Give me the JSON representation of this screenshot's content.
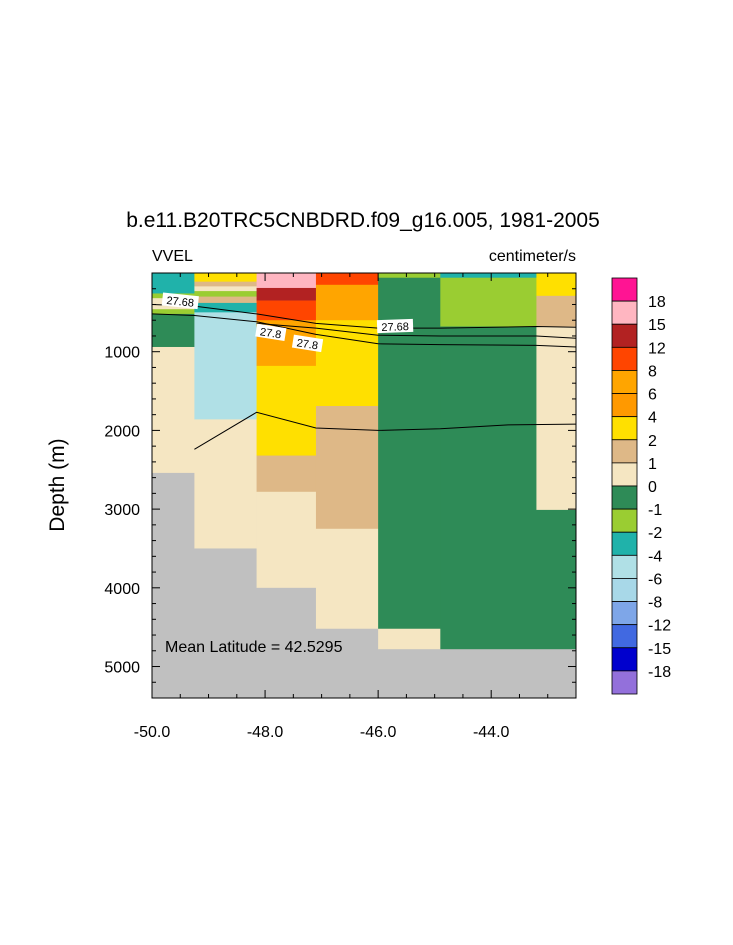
{
  "chart_data": {
    "type": "heatmap",
    "title": "b.e11.B20TRC5CNBDRD.f09_g16.005, 1981-2005",
    "variable_label": "VVEL",
    "units_label": "centimeter/s",
    "ylabel": "Depth (m)",
    "xlabel": "",
    "xlim": [
      -50.0,
      -42.5
    ],
    "ylim": [
      5400,
      0
    ],
    "y_reversed": true,
    "x_ticks": [
      -50.0,
      -48.0,
      -46.0,
      -44.0
    ],
    "x_tick_labels": [
      "-50.0",
      "-48.0",
      "-46.0",
      "-44.0"
    ],
    "y_ticks": [
      1000,
      2000,
      3000,
      4000,
      5000
    ],
    "y_tick_labels": [
      "1000",
      "2000",
      "3000",
      "4000",
      "5000"
    ],
    "annotation": "Mean Latitude = 42.5295",
    "colorbar": {
      "labels": [
        "18",
        "15",
        "12",
        "8",
        "6",
        "4",
        "2",
        "1",
        "0",
        "-1",
        "-2",
        "-4",
        "-6",
        "-8",
        "-12",
        "-15",
        "-18"
      ],
      "colors": [
        "#ff1493",
        "#ffb6c1",
        "#b22222",
        "#ff4500",
        "#ffa500",
        "#ff9900",
        "#ffe000",
        "#deb887",
        "#f5e6c2",
        "#2e8b57",
        "#9acd32",
        "#20b2aa",
        "#b0e0e6",
        "#a8d8e8",
        "#7ea6e8",
        "#4169e1",
        "#0000cd",
        "#9370db"
      ]
    },
    "missing_color": "#c0c0c0",
    "columns": [
      {
        "x0": -50.0,
        "x1": -49.25,
        "cells": [
          {
            "d0": 0,
            "d1": 260,
            "color": "#20b2aa"
          },
          {
            "d0": 260,
            "d1": 320,
            "color": "#9acd32"
          },
          {
            "d0": 320,
            "d1": 460,
            "color": "#f5e6c2"
          },
          {
            "d0": 460,
            "d1": 520,
            "color": "#9acd32"
          },
          {
            "d0": 520,
            "d1": 940,
            "color": "#2e8b57"
          },
          {
            "d0": 940,
            "d1": 2540,
            "color": "#f5e6c2"
          },
          {
            "d0": 2540,
            "d1": 5400,
            "color": "#c0c0c0"
          }
        ]
      },
      {
        "x0": -49.25,
        "x1": -48.15,
        "cells": [
          {
            "d0": 0,
            "d1": 110,
            "color": "#ffe000"
          },
          {
            "d0": 110,
            "d1": 170,
            "color": "#deb887"
          },
          {
            "d0": 170,
            "d1": 230,
            "color": "#f5e6c2"
          },
          {
            "d0": 230,
            "d1": 300,
            "color": "#9acd32"
          },
          {
            "d0": 300,
            "d1": 380,
            "color": "#deb887"
          },
          {
            "d0": 380,
            "d1": 500,
            "color": "#20b2aa"
          },
          {
            "d0": 500,
            "d1": 1860,
            "color": "#b0e0e6"
          },
          {
            "d0": 1860,
            "d1": 3500,
            "color": "#f5e6c2"
          },
          {
            "d0": 3500,
            "d1": 5400,
            "color": "#c0c0c0"
          }
        ]
      },
      {
        "x0": -48.15,
        "x1": -47.1,
        "cells": [
          {
            "d0": 0,
            "d1": 190,
            "color": "#ffb6c1"
          },
          {
            "d0": 190,
            "d1": 350,
            "color": "#b22222"
          },
          {
            "d0": 350,
            "d1": 600,
            "color": "#ff4500"
          },
          {
            "d0": 600,
            "d1": 1180,
            "color": "#ffa500"
          },
          {
            "d0": 1180,
            "d1": 2320,
            "color": "#ffe000"
          },
          {
            "d0": 2320,
            "d1": 2780,
            "color": "#deb887"
          },
          {
            "d0": 2780,
            "d1": 4000,
            "color": "#f5e6c2"
          },
          {
            "d0": 4000,
            "d1": 5400,
            "color": "#c0c0c0"
          }
        ]
      },
      {
        "x0": -47.1,
        "x1": -46.0,
        "cells": [
          {
            "d0": 0,
            "d1": 150,
            "color": "#ff4500"
          },
          {
            "d0": 150,
            "d1": 600,
            "color": "#ffa500"
          },
          {
            "d0": 600,
            "d1": 1690,
            "color": "#ffe000"
          },
          {
            "d0": 1690,
            "d1": 3250,
            "color": "#deb887"
          },
          {
            "d0": 3250,
            "d1": 4520,
            "color": "#f5e6c2"
          },
          {
            "d0": 4520,
            "d1": 5400,
            "color": "#c0c0c0"
          }
        ]
      },
      {
        "x0": -46.0,
        "x1": -44.9,
        "cells": [
          {
            "d0": 0,
            "d1": 60,
            "color": "#9acd32"
          },
          {
            "d0": 60,
            "d1": 4520,
            "color": "#2e8b57"
          },
          {
            "d0": 4520,
            "d1": 4780,
            "color": "#f5e6c2"
          },
          {
            "d0": 4780,
            "d1": 5400,
            "color": "#c0c0c0"
          }
        ]
      },
      {
        "x0": -44.9,
        "x1": -43.2,
        "cells": [
          {
            "d0": 0,
            "d1": 60,
            "color": "#20b2aa"
          },
          {
            "d0": 60,
            "d1": 680,
            "color": "#9acd32"
          },
          {
            "d0": 680,
            "d1": 4780,
            "color": "#2e8b57"
          },
          {
            "d0": 4780,
            "d1": 5400,
            "color": "#c0c0c0"
          }
        ]
      },
      {
        "x0": -43.2,
        "x1": -42.5,
        "cells": [
          {
            "d0": 0,
            "d1": 290,
            "color": "#ffe000"
          },
          {
            "d0": 290,
            "d1": 680,
            "color": "#deb887"
          },
          {
            "d0": 680,
            "d1": 3010,
            "color": "#f5e6c2"
          },
          {
            "d0": 3010,
            "d1": 4780,
            "color": "#2e8b57"
          },
          {
            "d0": 4780,
            "d1": 5400,
            "color": "#c0c0c0"
          }
        ]
      }
    ],
    "contours": [
      {
        "label": "27.68",
        "label_at": [
          -49.5,
          360
        ],
        "label_angle": 6,
        "x": [
          -50.0,
          -49.25,
          -48.15,
          -47.1,
          -46.0,
          -44.9,
          -43.2,
          -42.5
        ],
        "y": [
          400,
          420,
          520,
          640,
          700,
          700,
          680,
          690
        ]
      },
      {
        "label": "27.68",
        "label_at": [
          -45.7,
          680
        ],
        "label_angle": -2,
        "x": [
          -48.15,
          -47.1,
          -46.0,
          -44.9,
          -43.2,
          -42.5
        ],
        "y": [
          640,
          700,
          790,
          800,
          800,
          830
        ]
      },
      {
        "label": "27.8",
        "label_at": [
          -47.9,
          760
        ],
        "label_angle": 9,
        "x": [
          -50.0,
          -49.25,
          -48.15,
          -47.1,
          -46.0,
          -44.9,
          -43.2,
          -42.5
        ],
        "y": [
          520,
          540,
          620,
          780,
          900,
          910,
          920,
          940
        ]
      },
      {
        "label": "27.8",
        "label_at": [
          -47.25,
          900
        ],
        "label_angle": 9,
        "x": [],
        "y": []
      },
      {
        "label": "",
        "label_at": null,
        "label_angle": 0,
        "x": [
          -49.25,
          -48.15,
          -47.1,
          -46.0,
          -44.9,
          -43.7,
          -42.5
        ],
        "y": [
          2240,
          1770,
          1970,
          2000,
          1980,
          1930,
          1920
        ]
      }
    ]
  }
}
